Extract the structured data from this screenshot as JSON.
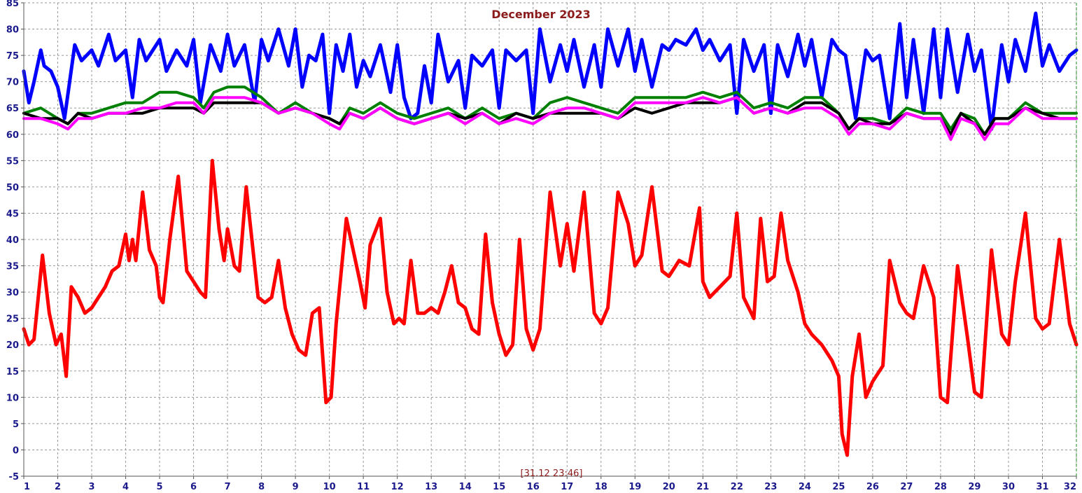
{
  "chart_data": {
    "type": "line",
    "title": "December 2023",
    "annotation": "[31.12 23:46]",
    "xlabel": "",
    "ylabel": "",
    "xlim": [
      1,
      32
    ],
    "ylim": [
      -5,
      85
    ],
    "grid": true,
    "x_ticks": [
      "1",
      "2",
      "3",
      "4",
      "5",
      "6",
      "7",
      "8",
      "9",
      "10",
      "11",
      "12",
      "13",
      "14",
      "15",
      "16",
      "17",
      "18",
      "19",
      "20",
      "21",
      "22",
      "23",
      "24",
      "25",
      "26",
      "27",
      "28",
      "29",
      "30",
      "31",
      "32"
    ],
    "y_ticks": [
      "-5",
      "0",
      "5",
      "10",
      "15",
      "20",
      "25",
      "30",
      "35",
      "40",
      "45",
      "50",
      "55",
      "60",
      "65",
      "70",
      "75",
      "80",
      "85"
    ],
    "series": [
      {
        "color": "#0000ff",
        "x": [
          1,
          1.15,
          1.3,
          1.5,
          1.6,
          1.8,
          2,
          2.2,
          2.5,
          2.7,
          3,
          3.2,
          3.5,
          3.7,
          4,
          4.2,
          4.4,
          4.6,
          5,
          5.2,
          5.5,
          5.8,
          6,
          6.2,
          6.5,
          6.8,
          7,
          7.2,
          7.5,
          7.8,
          8,
          8.2,
          8.5,
          8.8,
          9,
          9.2,
          9.4,
          9.6,
          9.8,
          10,
          10.2,
          10.4,
          10.6,
          10.8,
          11,
          11.2,
          11.5,
          11.8,
          12,
          12.2,
          12.4,
          12.6,
          12.8,
          13,
          13.2,
          13.5,
          13.8,
          14,
          14.2,
          14.5,
          14.8,
          15,
          15.2,
          15.5,
          15.8,
          16,
          16.2,
          16.5,
          16.8,
          17,
          17.2,
          17.5,
          17.8,
          18,
          18.2,
          18.5,
          18.8,
          19,
          19.2,
          19.5,
          19.8,
          20,
          20.2,
          20.5,
          20.8,
          21,
          21.2,
          21.5,
          21.8,
          22,
          22.2,
          22.5,
          22.8,
          23,
          23.2,
          23.5,
          23.8,
          24,
          24.2,
          24.5,
          24.8,
          25,
          25.2,
          25.5,
          25.8,
          26,
          26.2,
          26.5,
          26.8,
          27,
          27.2,
          27.5,
          27.8,
          28,
          28.2,
          28.5,
          28.8,
          29,
          29.2,
          29.5,
          29.8,
          30,
          30.2,
          30.5,
          30.8,
          31,
          31.2,
          31.5,
          31.8,
          32
        ],
        "y": [
          72,
          66,
          70,
          76,
          73,
          72,
          69,
          63,
          77,
          74,
          76,
          73,
          79,
          74,
          76,
          67,
          78,
          74,
          78,
          72,
          76,
          73,
          78,
          66,
          77,
          72,
          79,
          73,
          77,
          66,
          78,
          74,
          80,
          73,
          80,
          69,
          75,
          74,
          79,
          64,
          77,
          72,
          79,
          69,
          74,
          71,
          77,
          68,
          77,
          67,
          63,
          64,
          73,
          66,
          79,
          70,
          74,
          65,
          75,
          73,
          76,
          65,
          76,
          74,
          76,
          64,
          80,
          70,
          77,
          72,
          78,
          69,
          77,
          69,
          80,
          73,
          80,
          72,
          78,
          69,
          77,
          76,
          78,
          77,
          80,
          76,
          78,
          74,
          77,
          64,
          78,
          72,
          77,
          64,
          77,
          71,
          79,
          73,
          78,
          67,
          78,
          76,
          75,
          63,
          76,
          74,
          75,
          63,
          81,
          67,
          78,
          64,
          80,
          67,
          80,
          68,
          79,
          72,
          76,
          61,
          77,
          70,
          78,
          72,
          83,
          73,
          77,
          72,
          75,
          76
        ]
      },
      {
        "color": "#008000",
        "x": [
          1,
          1.5,
          2,
          2.3,
          2.6,
          3,
          3.5,
          4,
          4.5,
          5,
          5.5,
          6,
          6.3,
          6.6,
          7,
          7.5,
          8,
          8.5,
          9,
          9.5,
          10,
          10.3,
          10.6,
          11,
          11.5,
          12,
          12.5,
          13,
          13.5,
          14,
          14.5,
          15,
          15.5,
          16,
          16.5,
          17,
          17.5,
          18,
          18.5,
          19,
          19.5,
          20,
          20.5,
          21,
          21.5,
          22,
          22.5,
          23,
          23.5,
          24,
          24.5,
          25,
          25.3,
          25.6,
          26,
          26.5,
          27,
          27.5,
          28,
          28.3,
          28.6,
          29,
          29.3,
          29.6,
          30,
          30.5,
          31,
          31.5,
          32
        ],
        "y": [
          64,
          65,
          63,
          62,
          64,
          64,
          65,
          66,
          66,
          68,
          68,
          67,
          65,
          68,
          69,
          69,
          67,
          64,
          66,
          64,
          63,
          62,
          65,
          64,
          66,
          64,
          63,
          64,
          65,
          63,
          65,
          63,
          64,
          63,
          66,
          67,
          66,
          65,
          64,
          67,
          67,
          67,
          67,
          68,
          67,
          68,
          65,
          66,
          65,
          67,
          67,
          64,
          61,
          63,
          63,
          62,
          65,
          64,
          64,
          61,
          64,
          63,
          60,
          63,
          63,
          66,
          64,
          64,
          64
        ]
      },
      {
        "color": "#000000",
        "x": [
          1,
          1.5,
          2,
          2.3,
          2.6,
          3,
          3.5,
          4,
          4.5,
          5,
          5.5,
          6,
          6.3,
          6.6,
          7,
          7.5,
          8,
          8.5,
          9,
          9.5,
          10,
          10.3,
          10.6,
          11,
          11.5,
          12,
          12.5,
          13,
          13.5,
          14,
          14.5,
          15,
          15.5,
          16,
          16.5,
          17,
          17.5,
          18,
          18.5,
          19,
          19.5,
          20,
          20.5,
          21,
          21.5,
          22,
          22.5,
          23,
          23.5,
          24,
          24.5,
          25,
          25.3,
          25.6,
          26,
          26.5,
          27,
          27.5,
          28,
          28.3,
          28.6,
          29,
          29.3,
          29.6,
          30,
          30.5,
          31,
          31.5,
          32
        ],
        "y": [
          64,
          63,
          63,
          62,
          64,
          63,
          64,
          64,
          64,
          65,
          65,
          65,
          64,
          66,
          66,
          66,
          66,
          64,
          65,
          64,
          63,
          62,
          64,
          63,
          65,
          63,
          62,
          63,
          64,
          63,
          64,
          62,
          64,
          63,
          64,
          64,
          64,
          64,
          63,
          65,
          64,
          65,
          66,
          66,
          66,
          67,
          64,
          65,
          64,
          66,
          66,
          64,
          61,
          63,
          62,
          62,
          64,
          63,
          63,
          60,
          64,
          62,
          60,
          63,
          63,
          65,
          64,
          63,
          63
        ]
      },
      {
        "color": "#ff00ff",
        "x": [
          1,
          1.5,
          2,
          2.3,
          2.6,
          3,
          3.5,
          4,
          4.5,
          5,
          5.5,
          6,
          6.3,
          6.6,
          7,
          7.5,
          8,
          8.5,
          9,
          9.5,
          10,
          10.3,
          10.6,
          11,
          11.5,
          12,
          12.5,
          13,
          13.5,
          14,
          14.5,
          15,
          15.5,
          16,
          16.5,
          17,
          17.5,
          18,
          18.5,
          19,
          19.5,
          20,
          20.5,
          21,
          21.5,
          22,
          22.5,
          23,
          23.5,
          24,
          24.5,
          25,
          25.3,
          25.6,
          26,
          26.5,
          27,
          27.5,
          28,
          28.3,
          28.6,
          29,
          29.3,
          29.6,
          30,
          30.5,
          31,
          31.5,
          32
        ],
        "y": [
          63,
          63,
          62,
          61,
          63,
          63,
          64,
          64,
          65,
          65,
          66,
          66,
          64,
          67,
          67,
          67,
          66,
          64,
          65,
          64,
          62,
          61,
          64,
          63,
          65,
          63,
          62,
          63,
          64,
          62,
          64,
          62,
          63,
          62,
          64,
          65,
          65,
          64,
          63,
          66,
          66,
          66,
          66,
          67,
          66,
          67,
          64,
          65,
          64,
          65,
          65,
          63,
          60,
          62,
          62,
          61,
          64,
          63,
          63,
          59,
          63,
          62,
          59,
          62,
          62,
          65,
          63,
          63,
          63
        ]
      },
      {
        "color": "#ff0000",
        "x": [
          1,
          1.15,
          1.3,
          1.55,
          1.75,
          1.95,
          2.1,
          2.25,
          2.4,
          2.6,
          2.8,
          3,
          3.2,
          3.4,
          3.6,
          3.8,
          4,
          4.1,
          4.2,
          4.3,
          4.5,
          4.7,
          4.9,
          5,
          5.1,
          5.3,
          5.55,
          5.8,
          6,
          6.2,
          6.35,
          6.55,
          6.75,
          6.9,
          7,
          7.2,
          7.35,
          7.55,
          7.75,
          7.9,
          8.1,
          8.3,
          8.5,
          8.7,
          8.9,
          9.1,
          9.3,
          9.5,
          9.7,
          9.9,
          10.05,
          10.2,
          10.5,
          10.7,
          10.9,
          11.05,
          11.2,
          11.5,
          11.7,
          11.9,
          12.05,
          12.2,
          12.4,
          12.6,
          12.8,
          13,
          13.2,
          13.4,
          13.6,
          13.8,
          14,
          14.2,
          14.4,
          14.6,
          14.8,
          15,
          15.2,
          15.4,
          15.6,
          15.8,
          16,
          16.2,
          16.5,
          16.8,
          17,
          17.2,
          17.5,
          17.8,
          18,
          18.2,
          18.5,
          18.8,
          19,
          19.2,
          19.5,
          19.8,
          20,
          20.3,
          20.6,
          20.9,
          21,
          21.2,
          21.5,
          21.8,
          22,
          22.2,
          22.5,
          22.7,
          22.9,
          23.1,
          23.3,
          23.5,
          23.8,
          24,
          24.2,
          24.5,
          24.8,
          25,
          25.1,
          25.25,
          25.4,
          25.6,
          25.8,
          26,
          26.3,
          26.5,
          26.8,
          27,
          27.2,
          27.5,
          27.8,
          28,
          28.2,
          28.5,
          28.8,
          29,
          29.2,
          29.5,
          29.8,
          30,
          30.2,
          30.5,
          30.8,
          31,
          31.2,
          31.5,
          31.8,
          32
        ],
        "y": [
          23,
          20,
          21,
          37,
          26,
          20,
          22,
          14,
          31,
          29,
          26,
          27,
          29,
          31,
          34,
          35,
          41,
          36,
          40,
          36,
          49,
          38,
          35,
          29,
          28,
          40,
          52,
          34,
          32,
          30,
          29,
          55,
          42,
          36,
          42,
          35,
          34,
          50,
          38,
          29,
          28,
          29,
          36,
          27,
          22,
          19,
          18,
          26,
          27,
          9,
          10,
          24,
          44,
          38,
          32,
          27,
          39,
          44,
          30,
          24,
          25,
          24,
          36,
          26,
          26,
          27,
          26,
          30,
          35,
          28,
          27,
          23,
          22,
          41,
          28,
          22,
          18,
          20,
          40,
          23,
          19,
          23,
          49,
          35,
          43,
          34,
          49,
          26,
          24,
          27,
          49,
          43,
          35,
          37,
          50,
          34,
          33,
          36,
          35,
          46,
          32,
          29,
          31,
          33,
          45,
          29,
          25,
          44,
          32,
          33,
          45,
          36,
          30,
          24,
          22,
          20,
          17,
          14,
          3,
          -1,
          14,
          22,
          10,
          13,
          16,
          36,
          28,
          26,
          25,
          35,
          29,
          10,
          9,
          35,
          21,
          11,
          10,
          38,
          22,
          20,
          32,
          45,
          25,
          23,
          24,
          40,
          24,
          20
        ]
      }
    ]
  }
}
